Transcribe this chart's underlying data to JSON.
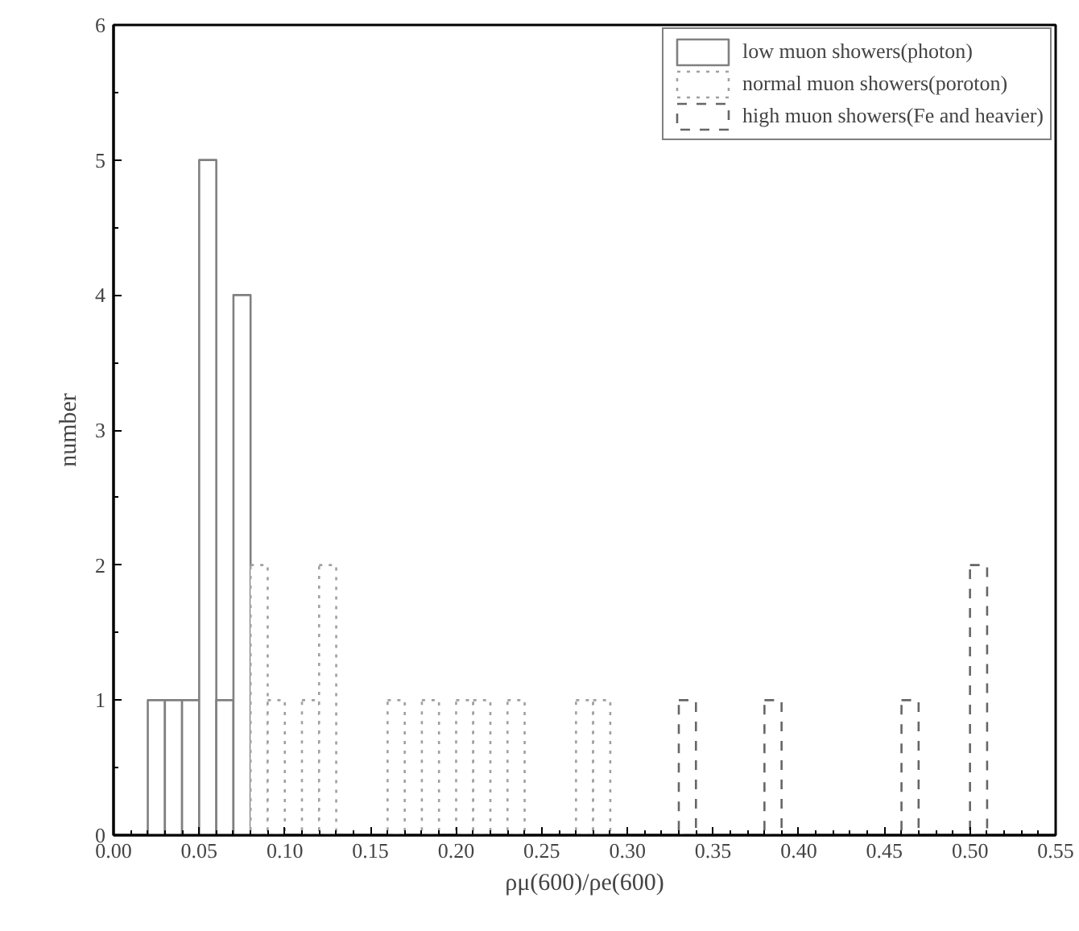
{
  "chart_data": {
    "type": "histogram",
    "xlabel": "ρμ(600)/ρe(600)",
    "ylabel": "number",
    "xlim": [
      0,
      0.55
    ],
    "xticks": [
      {
        "value": 0,
        "label": "0.00"
      },
      0.05,
      {
        "value": 0.1,
        "label": "0.10"
      },
      0.15,
      {
        "value": 0.2,
        "label": "0.20"
      },
      0.25,
      {
        "value": 0.3,
        "label": "0.30"
      },
      0.35,
      {
        "value": 0.4,
        "label": "0.40"
      },
      0.45,
      {
        "value": 0.5,
        "label": "0.50"
      },
      0.55
    ],
    "ylim": [
      0,
      6
    ],
    "yticks": [
      0,
      1,
      2,
      3,
      4,
      5,
      6
    ],
    "grid": false,
    "legend": "top right",
    "bins": [
      0.02,
      0.03,
      0.04,
      0.05,
      0.06,
      0.07,
      0.08,
      0.09,
      0.1,
      0.11,
      0.12,
      0.13,
      0.14,
      0.15,
      0.16,
      0.17,
      0.18,
      0.19,
      0.2,
      0.21,
      0.22,
      0.23,
      0.24,
      0.25,
      0.26,
      0.27,
      0.28,
      0.29,
      0.3,
      0.31,
      0.32,
      0.33,
      0.34,
      0.35,
      0.36,
      0.37,
      0.38,
      0.39,
      0.4,
      0.41,
      0.42,
      0.43,
      0.44,
      0.45,
      0.46,
      0.47,
      0.48,
      0.49,
      0.5,
      0.51
    ],
    "series": [
      {
        "name": "low muon showers(photon)",
        "color": "#808080",
        "line_style": "solid",
        "values": [
          1,
          1,
          1,
          5,
          1,
          4,
          null,
          null,
          null,
          null,
          null,
          null,
          null,
          null,
          null,
          null,
          null,
          null,
          null,
          null,
          null,
          null,
          null,
          null,
          null,
          null,
          null,
          null,
          null,
          null,
          null,
          null,
          null,
          null,
          null,
          null,
          null,
          null,
          null,
          null,
          null,
          null,
          null,
          null,
          null,
          null,
          null,
          null,
          null
        ]
      },
      {
        "name": "normal muon showers(poroton)",
        "color": "#a0a0a0",
        "line_style": "dotted",
        "values": [
          null,
          null,
          null,
          null,
          null,
          null,
          2,
          1,
          0,
          1,
          2,
          0,
          0,
          0,
          1,
          0,
          1,
          0,
          1,
          1,
          0,
          1,
          0,
          0,
          0,
          1,
          1,
          null,
          null,
          null,
          null,
          null,
          null,
          null,
          null,
          null,
          null,
          null,
          null,
          null,
          null,
          null,
          null,
          null,
          null,
          null,
          null,
          null,
          null
        ]
      },
      {
        "name": "high muon showers(Fe and heavier)",
        "color": "#666666",
        "line_style": "dashed",
        "values": [
          null,
          null,
          null,
          null,
          null,
          null,
          null,
          null,
          null,
          null,
          null,
          null,
          null,
          null,
          null,
          null,
          null,
          null,
          null,
          null,
          null,
          null,
          null,
          null,
          null,
          null,
          null,
          null,
          null,
          null,
          null,
          1,
          0,
          0,
          0,
          0,
          1,
          0,
          0,
          0,
          0,
          0,
          0,
          0,
          1,
          0,
          0,
          0,
          2
        ]
      }
    ]
  }
}
